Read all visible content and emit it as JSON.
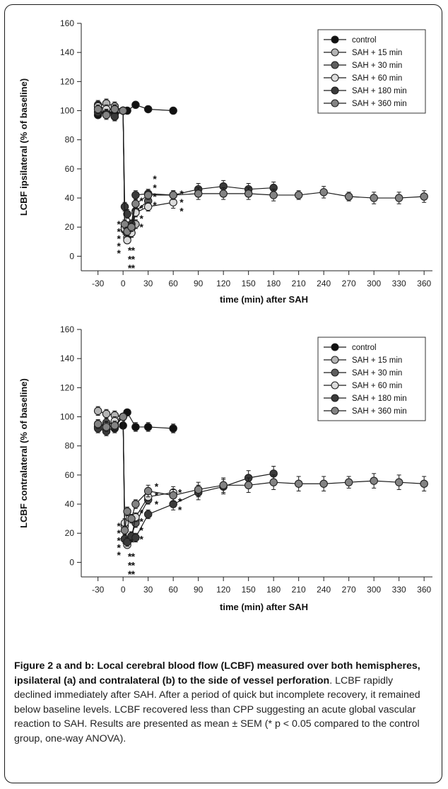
{
  "chart_data": [
    {
      "type": "line",
      "ylabel": "LCBF ipsilateral (% of baseline)",
      "xlabel": "time (min) after SAH",
      "ylim": [
        -10,
        160
      ],
      "yticks": [
        0,
        20,
        40,
        60,
        80,
        100,
        120,
        140,
        160
      ],
      "xlim": [
        -50,
        370
      ],
      "xticks": [
        -30,
        0,
        30,
        60,
        90,
        120,
        150,
        180,
        210,
        240,
        270,
        300,
        330,
        360
      ],
      "legend_position": "top-right",
      "legend": [
        "control",
        "SAH + 15 min",
        "SAH + 30 min",
        "SAH + 60 min",
        "SAH + 180 min",
        "SAH + 360 min"
      ],
      "series": [
        {
          "name": "control",
          "color": "#111111",
          "x": [
            -30,
            -20,
            -10,
            0,
            5,
            15,
            30,
            60
          ],
          "y": [
            97,
            99,
            98,
            100,
            100,
            104,
            101,
            100
          ],
          "err": [
            2,
            3,
            2,
            1,
            1,
            2,
            2,
            2
          ]
        },
        {
          "name": "SAH + 15 min",
          "color": "#b4b4b4",
          "x": [
            -30,
            -20,
            -10,
            0,
            2,
            5,
            10,
            15
          ],
          "y": [
            103,
            105,
            103,
            100,
            20,
            13,
            16,
            22
          ],
          "err": [
            3,
            3,
            3,
            2,
            3,
            2,
            3,
            3
          ]
        },
        {
          "name": "SAH + 30 min",
          "color": "#5e5e5e",
          "x": [
            -30,
            -20,
            -10,
            0,
            2,
            5,
            10,
            15,
            30
          ],
          "y": [
            104,
            100,
            96,
            100,
            18,
            16,
            19,
            31,
            38
          ],
          "err": [
            3,
            3,
            3,
            2,
            3,
            3,
            3,
            3,
            3
          ]
        },
        {
          "name": "SAH + 60 min",
          "color": "#dcdcdc",
          "x": [
            -30,
            -20,
            -10,
            0,
            2,
            5,
            10,
            15,
            30,
            60
          ],
          "y": [
            103,
            101,
            101,
            100,
            19,
            11,
            16,
            30,
            34,
            37
          ],
          "err": [
            3,
            3,
            3,
            2,
            3,
            2,
            3,
            3,
            3,
            4
          ]
        },
        {
          "name": "SAH + 180 min",
          "color": "#3a3a3a",
          "x": [
            -30,
            -20,
            -10,
            0,
            2,
            5,
            10,
            15,
            30,
            60,
            90,
            120,
            150,
            180
          ],
          "y": [
            99,
            98,
            96,
            100,
            34,
            29,
            22,
            42,
            43,
            42,
            46,
            48,
            46,
            47
          ],
          "err": [
            3,
            3,
            3,
            2,
            3,
            3,
            3,
            3,
            3,
            3,
            4,
            4,
            4,
            4
          ]
        },
        {
          "name": "SAH + 360 min",
          "color": "#838383",
          "x": [
            -30,
            -20,
            -10,
            0,
            2,
            5,
            10,
            15,
            30,
            60,
            90,
            120,
            150,
            180,
            210,
            240,
            270,
            300,
            330,
            360
          ],
          "y": [
            101,
            97,
            101,
            100,
            22,
            17,
            20,
            36,
            42,
            42,
            43,
            43,
            43,
            42,
            42,
            44,
            41,
            40,
            40,
            41
          ],
          "err": [
            3,
            3,
            3,
            2,
            3,
            3,
            3,
            3,
            3,
            3,
            4,
            4,
            4,
            4,
            3,
            4,
            3,
            4,
            4,
            4
          ]
        }
      ],
      "stars": [
        {
          "x": -5,
          "y": 24,
          "text": "*"
        },
        {
          "x": -5,
          "y": 19,
          "text": "*"
        },
        {
          "x": -5,
          "y": 14,
          "text": "*"
        },
        {
          "x": -5,
          "y": 9,
          "text": "*"
        },
        {
          "x": -5,
          "y": 4,
          "text": "*"
        },
        {
          "x": 8,
          "y": 6,
          "text": "*"
        },
        {
          "x": 12,
          "y": 6,
          "text": "*"
        },
        {
          "x": 8,
          "y": 0,
          "text": "*"
        },
        {
          "x": 12,
          "y": 0,
          "text": "*"
        },
        {
          "x": 8,
          "y": -6,
          "text": "*"
        },
        {
          "x": 12,
          "y": -6,
          "text": "*"
        },
        {
          "x": 22,
          "y": 28,
          "text": "*"
        },
        {
          "x": 22,
          "y": 22,
          "text": "*"
        },
        {
          "x": 22,
          "y": 40,
          "text": "*"
        },
        {
          "x": 22,
          "y": 35,
          "text": "*"
        },
        {
          "x": 38,
          "y": 55,
          "text": "*"
        },
        {
          "x": 38,
          "y": 49,
          "text": "*"
        },
        {
          "x": 38,
          "y": 43,
          "text": "*"
        },
        {
          "x": 38,
          "y": 37,
          "text": "*"
        },
        {
          "x": 70,
          "y": 45,
          "text": "*"
        },
        {
          "x": 70,
          "y": 39,
          "text": "*"
        },
        {
          "x": 70,
          "y": 33,
          "text": "*"
        }
      ]
    },
    {
      "type": "line",
      "ylabel": "LCBF contralateral (% of baseline)",
      "xlabel": "time (min) after SAH",
      "ylim": [
        -10,
        160
      ],
      "yticks": [
        0,
        20,
        40,
        60,
        80,
        100,
        120,
        140,
        160
      ],
      "xlim": [
        -50,
        370
      ],
      "xticks": [
        -30,
        0,
        30,
        60,
        90,
        120,
        150,
        180,
        210,
        240,
        270,
        300,
        330,
        360
      ],
      "legend_position": "top-right",
      "legend": [
        "control",
        "SAH + 15 min",
        "SAH + 30 min",
        "SAH + 60 min",
        "SAH + 180 min",
        "SAH + 360 min"
      ],
      "series": [
        {
          "name": "control",
          "color": "#111111",
          "x": [
            -30,
            -20,
            -10,
            0,
            5,
            15,
            30,
            60
          ],
          "y": [
            93,
            91,
            92,
            94,
            103,
            93,
            93,
            92
          ],
          "err": [
            3,
            3,
            3,
            2,
            2,
            3,
            3,
            3
          ]
        },
        {
          "name": "SAH + 15 min",
          "color": "#b4b4b4",
          "x": [
            -30,
            -20,
            -10,
            0,
            2,
            5,
            10,
            15
          ],
          "y": [
            104,
            102,
            101,
            100,
            25,
            14,
            17,
            29
          ],
          "err": [
            3,
            3,
            3,
            2,
            3,
            2,
            3,
            3
          ]
        },
        {
          "name": "SAH + 30 min",
          "color": "#5e5e5e",
          "x": [
            -30,
            -20,
            -10,
            0,
            2,
            5,
            10,
            15,
            30
          ],
          "y": [
            93,
            96,
            95,
            100,
            16,
            14,
            18,
            27,
            43
          ],
          "err": [
            3,
            3,
            3,
            2,
            3,
            3,
            3,
            3,
            3
          ]
        },
        {
          "name": "SAH + 60 min",
          "color": "#dcdcdc",
          "x": [
            -30,
            -20,
            -10,
            0,
            2,
            5,
            10,
            15,
            30,
            60
          ],
          "y": [
            95,
            94,
            97,
            100,
            27,
            12,
            17,
            31,
            45,
            48
          ],
          "err": [
            3,
            3,
            3,
            2,
            3,
            2,
            3,
            3,
            3,
            4
          ]
        },
        {
          "name": "SAH + 180 min",
          "color": "#3a3a3a",
          "x": [
            -30,
            -20,
            -10,
            0,
            2,
            5,
            10,
            15,
            30,
            60,
            90,
            120,
            150,
            180
          ],
          "y": [
            92,
            90,
            93,
            100,
            16,
            14,
            18,
            17,
            33,
            40,
            48,
            52,
            58,
            61
          ],
          "err": [
            3,
            3,
            3,
            2,
            3,
            3,
            3,
            3,
            3,
            4,
            5,
            5,
            5,
            5
          ]
        },
        {
          "name": "SAH + 360 min",
          "color": "#838383",
          "x": [
            -30,
            -20,
            -10,
            0,
            2,
            5,
            10,
            15,
            30,
            60,
            90,
            120,
            150,
            180,
            210,
            240,
            270,
            300,
            330,
            360
          ],
          "y": [
            95,
            93,
            94,
            100,
            22,
            35,
            30,
            40,
            49,
            46,
            50,
            53,
            53,
            55,
            54,
            54,
            55,
            56,
            55,
            54
          ],
          "err": [
            3,
            3,
            3,
            2,
            3,
            3,
            3,
            3,
            4,
            4,
            5,
            5,
            5,
            5,
            5,
            5,
            4,
            5,
            5,
            5
          ]
        }
      ],
      "stars": [
        {
          "x": -5,
          "y": 27,
          "text": "*"
        },
        {
          "x": -5,
          "y": 22,
          "text": "*"
        },
        {
          "x": -5,
          "y": 17,
          "text": "*"
        },
        {
          "x": -5,
          "y": 12,
          "text": "*"
        },
        {
          "x": -5,
          "y": 7,
          "text": "*"
        },
        {
          "x": 8,
          "y": 6,
          "text": "*"
        },
        {
          "x": 12,
          "y": 6,
          "text": "*"
        },
        {
          "x": 8,
          "y": 0,
          "text": "*"
        },
        {
          "x": 12,
          "y": 0,
          "text": "*"
        },
        {
          "x": 8,
          "y": -6,
          "text": "*"
        },
        {
          "x": 12,
          "y": -6,
          "text": "*"
        },
        {
          "x": 22,
          "y": 36,
          "text": "*"
        },
        {
          "x": 22,
          "y": 30,
          "text": "*"
        },
        {
          "x": 22,
          "y": 24,
          "text": "*"
        },
        {
          "x": 22,
          "y": 18,
          "text": "*"
        },
        {
          "x": 40,
          "y": 54,
          "text": "*"
        },
        {
          "x": 40,
          "y": 48,
          "text": "*"
        },
        {
          "x": 40,
          "y": 42,
          "text": "*"
        },
        {
          "x": 68,
          "y": 50,
          "text": "*"
        },
        {
          "x": 68,
          "y": 44,
          "text": "*"
        },
        {
          "x": 68,
          "y": 38,
          "text": "*"
        }
      ]
    }
  ],
  "caption": {
    "bold": "Figure 2 a and b: Local cerebral blood flow (LCBF) measured over both hemispheres, ipsilateral (a) and contralateral (b) to the side of vessel perforation",
    "text": ". LCBF rapidly declined immediately after SAH. After a period of quick but incomplete recovery, it remained below baseline levels. LCBF recovered less than CPP suggesting an acute global vascular reaction to SAH. Results are presented as mean ± SEM (* p < 0.05 compared to the control group, one-way ANOVA)."
  }
}
